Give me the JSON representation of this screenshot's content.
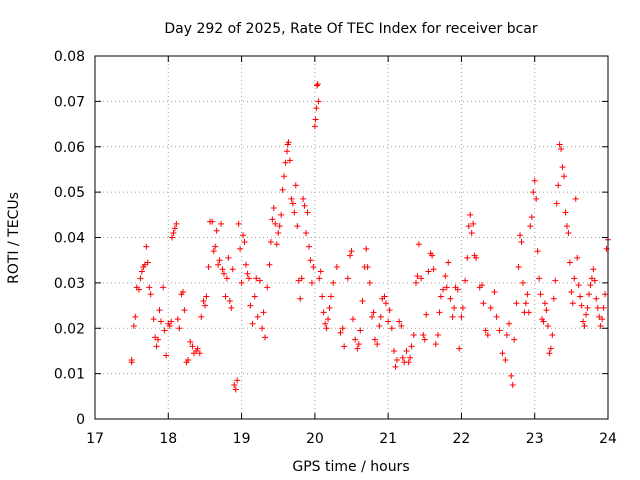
{
  "chart_data": {
    "type": "scatter",
    "title": "Day 292 of 2025, Rate Of TEC Index for receiver bcar",
    "xlabel": "GPS time / hours",
    "ylabel": "ROTI / TECUs",
    "xlim": [
      17,
      24
    ],
    "ylim": [
      0,
      0.08
    ],
    "x_ticks": [
      17,
      18,
      19,
      20,
      21,
      22,
      23,
      24
    ],
    "x_tick_labels": [
      "17",
      "18",
      "19",
      "20",
      "21",
      "22",
      "23",
      "24"
    ],
    "y_ticks": [
      0,
      0.01,
      0.02,
      0.03,
      0.04,
      0.05,
      0.06,
      0.07,
      0.08
    ],
    "y_tick_labels": [
      "0",
      "0.01",
      "0.02",
      "0.03",
      "0.04",
      "0.05",
      "0.06",
      "0.07",
      "0.08"
    ],
    "grid": true,
    "marker": "plus",
    "color": "#ff0000",
    "series": [
      {
        "name": "ROTI",
        "points": [
          [
            17.5,
            0.0125
          ],
          [
            17.5,
            0.013
          ],
          [
            17.53,
            0.0205
          ],
          [
            17.55,
            0.0225
          ],
          [
            17.57,
            0.029
          ],
          [
            17.6,
            0.0285
          ],
          [
            17.62,
            0.031
          ],
          [
            17.64,
            0.0325
          ],
          [
            17.66,
            0.0335
          ],
          [
            17.68,
            0.034
          ],
          [
            17.7,
            0.038
          ],
          [
            17.72,
            0.0345
          ],
          [
            17.74,
            0.029
          ],
          [
            17.76,
            0.0275
          ],
          [
            17.8,
            0.022
          ],
          [
            17.82,
            0.018
          ],
          [
            17.84,
            0.016
          ],
          [
            17.86,
            0.0175
          ],
          [
            17.88,
            0.024
          ],
          [
            17.9,
            0.0215
          ],
          [
            17.93,
            0.029
          ],
          [
            17.95,
            0.0195
          ],
          [
            17.97,
            0.014
          ],
          [
            18.0,
            0.021
          ],
          [
            18.02,
            0.0205
          ],
          [
            18.04,
            0.0215
          ],
          [
            18.05,
            0.04
          ],
          [
            18.07,
            0.041
          ],
          [
            18.09,
            0.042
          ],
          [
            18.11,
            0.043
          ],
          [
            18.13,
            0.022
          ],
          [
            18.15,
            0.02
          ],
          [
            18.18,
            0.0275
          ],
          [
            18.2,
            0.028
          ],
          [
            18.22,
            0.024
          ],
          [
            18.25,
            0.0125
          ],
          [
            18.27,
            0.013
          ],
          [
            18.3,
            0.017
          ],
          [
            18.33,
            0.016
          ],
          [
            18.35,
            0.0145
          ],
          [
            18.38,
            0.015
          ],
          [
            18.4,
            0.0155
          ],
          [
            18.43,
            0.0145
          ],
          [
            18.45,
            0.0225
          ],
          [
            18.48,
            0.026
          ],
          [
            18.5,
            0.025
          ],
          [
            18.52,
            0.027
          ],
          [
            18.55,
            0.0335
          ],
          [
            18.57,
            0.0435
          ],
          [
            18.6,
            0.0435
          ],
          [
            18.62,
            0.037
          ],
          [
            18.64,
            0.038
          ],
          [
            18.66,
            0.0415
          ],
          [
            18.68,
            0.034
          ],
          [
            18.7,
            0.035
          ],
          [
            18.72,
            0.043
          ],
          [
            18.74,
            0.033
          ],
          [
            18.76,
            0.032
          ],
          [
            18.78,
            0.027
          ],
          [
            18.8,
            0.031
          ],
          [
            18.82,
            0.0355
          ],
          [
            18.84,
            0.026
          ],
          [
            18.86,
            0.0245
          ],
          [
            18.88,
            0.033
          ],
          [
            18.9,
            0.0075
          ],
          [
            18.92,
            0.0065
          ],
          [
            18.94,
            0.0085
          ],
          [
            18.96,
            0.043
          ],
          [
            18.98,
            0.0375
          ],
          [
            19.0,
            0.03
          ],
          [
            19.02,
            0.0405
          ],
          [
            19.04,
            0.039
          ],
          [
            19.06,
            0.034
          ],
          [
            19.08,
            0.032
          ],
          [
            19.1,
            0.031
          ],
          [
            19.12,
            0.025
          ],
          [
            19.15,
            0.021
          ],
          [
            19.18,
            0.027
          ],
          [
            19.2,
            0.031
          ],
          [
            19.22,
            0.0225
          ],
          [
            19.25,
            0.0305
          ],
          [
            19.28,
            0.02
          ],
          [
            19.3,
            0.0235
          ],
          [
            19.32,
            0.018
          ],
          [
            19.35,
            0.029
          ],
          [
            19.38,
            0.034
          ],
          [
            19.4,
            0.039
          ],
          [
            19.42,
            0.044
          ],
          [
            19.44,
            0.0465
          ],
          [
            19.46,
            0.043
          ],
          [
            19.48,
            0.0385
          ],
          [
            19.5,
            0.041
          ],
          [
            19.52,
            0.0425
          ],
          [
            19.54,
            0.045
          ],
          [
            19.56,
            0.0505
          ],
          [
            19.58,
            0.0535
          ],
          [
            19.6,
            0.0565
          ],
          [
            19.62,
            0.059
          ],
          [
            19.63,
            0.0605
          ],
          [
            19.64,
            0.061
          ],
          [
            19.66,
            0.057
          ],
          [
            19.68,
            0.0485
          ],
          [
            19.7,
            0.0475
          ],
          [
            19.72,
            0.0455
          ],
          [
            19.74,
            0.0515
          ],
          [
            19.76,
            0.0425
          ],
          [
            19.78,
            0.0305
          ],
          [
            19.8,
            0.0265
          ],
          [
            19.82,
            0.031
          ],
          [
            19.84,
            0.0485
          ],
          [
            19.86,
            0.047
          ],
          [
            19.88,
            0.041
          ],
          [
            19.9,
            0.0455
          ],
          [
            19.92,
            0.038
          ],
          [
            19.94,
            0.035
          ],
          [
            19.96,
            0.03
          ],
          [
            19.98,
            0.0335
          ],
          [
            20.0,
            0.0645
          ],
          [
            20.01,
            0.066
          ],
          [
            20.02,
            0.0685
          ],
          [
            20.03,
            0.0735
          ],
          [
            20.04,
            0.0738
          ],
          [
            20.05,
            0.07
          ],
          [
            20.06,
            0.031
          ],
          [
            20.08,
            0.0325
          ],
          [
            20.1,
            0.027
          ],
          [
            20.12,
            0.0235
          ],
          [
            20.14,
            0.021
          ],
          [
            20.16,
            0.02
          ],
          [
            20.18,
            0.022
          ],
          [
            20.2,
            0.0245
          ],
          [
            20.22,
            0.027
          ],
          [
            20.25,
            0.03
          ],
          [
            20.3,
            0.0335
          ],
          [
            20.35,
            0.019
          ],
          [
            20.38,
            0.02
          ],
          [
            20.4,
            0.016
          ],
          [
            20.45,
            0.031
          ],
          [
            20.48,
            0.036
          ],
          [
            20.5,
            0.037
          ],
          [
            20.52,
            0.022
          ],
          [
            20.55,
            0.0175
          ],
          [
            20.58,
            0.0155
          ],
          [
            20.6,
            0.0165
          ],
          [
            20.62,
            0.0195
          ],
          [
            20.65,
            0.026
          ],
          [
            20.68,
            0.0335
          ],
          [
            20.7,
            0.0375
          ],
          [
            20.72,
            0.0335
          ],
          [
            20.75,
            0.03
          ],
          [
            20.78,
            0.0225
          ],
          [
            20.8,
            0.0235
          ],
          [
            20.82,
            0.0175
          ],
          [
            20.85,
            0.0165
          ],
          [
            20.88,
            0.0205
          ],
          [
            20.9,
            0.0225
          ],
          [
            20.92,
            0.0265
          ],
          [
            20.95,
            0.027
          ],
          [
            20.97,
            0.0255
          ],
          [
            21.0,
            0.0215
          ],
          [
            21.02,
            0.024
          ],
          [
            21.05,
            0.02
          ],
          [
            21.08,
            0.015
          ],
          [
            21.1,
            0.0115
          ],
          [
            21.12,
            0.013
          ],
          [
            21.15,
            0.0215
          ],
          [
            21.18,
            0.0205
          ],
          [
            21.2,
            0.0135
          ],
          [
            21.22,
            0.0125
          ],
          [
            21.25,
            0.015
          ],
          [
            21.28,
            0.0125
          ],
          [
            21.3,
            0.0135
          ],
          [
            21.32,
            0.016
          ],
          [
            21.35,
            0.0185
          ],
          [
            21.38,
            0.03
          ],
          [
            21.4,
            0.0315
          ],
          [
            21.42,
            0.0385
          ],
          [
            21.45,
            0.031
          ],
          [
            21.48,
            0.0185
          ],
          [
            21.5,
            0.0175
          ],
          [
            21.52,
            0.023
          ],
          [
            21.55,
            0.0325
          ],
          [
            21.58,
            0.0365
          ],
          [
            21.6,
            0.036
          ],
          [
            21.62,
            0.033
          ],
          [
            21.65,
            0.0165
          ],
          [
            21.68,
            0.0185
          ],
          [
            21.7,
            0.0235
          ],
          [
            21.72,
            0.027
          ],
          [
            21.75,
            0.0285
          ],
          [
            21.78,
            0.0315
          ],
          [
            21.8,
            0.029
          ],
          [
            21.82,
            0.0345
          ],
          [
            21.85,
            0.0265
          ],
          [
            21.88,
            0.0225
          ],
          [
            21.9,
            0.0245
          ],
          [
            21.92,
            0.029
          ],
          [
            21.95,
            0.0285
          ],
          [
            21.97,
            0.0155
          ],
          [
            22.0,
            0.0225
          ],
          [
            22.02,
            0.0245
          ],
          [
            22.05,
            0.0305
          ],
          [
            22.08,
            0.0355
          ],
          [
            22.1,
            0.0425
          ],
          [
            22.12,
            0.045
          ],
          [
            22.14,
            0.041
          ],
          [
            22.16,
            0.043
          ],
          [
            22.18,
            0.036
          ],
          [
            22.2,
            0.0355
          ],
          [
            22.25,
            0.029
          ],
          [
            22.28,
            0.0295
          ],
          [
            22.3,
            0.0255
          ],
          [
            22.33,
            0.0195
          ],
          [
            22.36,
            0.0185
          ],
          [
            22.4,
            0.0245
          ],
          [
            22.45,
            0.028
          ],
          [
            22.48,
            0.0225
          ],
          [
            22.52,
            0.0195
          ],
          [
            22.56,
            0.0145
          ],
          [
            22.6,
            0.013
          ],
          [
            22.62,
            0.0185
          ],
          [
            22.65,
            0.021
          ],
          [
            22.68,
            0.0095
          ],
          [
            22.7,
            0.0075
          ],
          [
            22.72,
            0.0175
          ],
          [
            22.75,
            0.0255
          ],
          [
            22.78,
            0.0335
          ],
          [
            22.8,
            0.0405
          ],
          [
            22.82,
            0.039
          ],
          [
            22.84,
            0.03
          ],
          [
            22.86,
            0.0235
          ],
          [
            22.88,
            0.0255
          ],
          [
            22.9,
            0.0275
          ],
          [
            22.92,
            0.0235
          ],
          [
            22.94,
            0.0425
          ],
          [
            22.96,
            0.0445
          ],
          [
            22.98,
            0.05
          ],
          [
            23.0,
            0.0525
          ],
          [
            23.02,
            0.0485
          ],
          [
            23.04,
            0.037
          ],
          [
            23.06,
            0.031
          ],
          [
            23.08,
            0.0275
          ],
          [
            23.1,
            0.022
          ],
          [
            23.12,
            0.0215
          ],
          [
            23.14,
            0.0255
          ],
          [
            23.16,
            0.024
          ],
          [
            23.18,
            0.0205
          ],
          [
            23.2,
            0.0145
          ],
          [
            23.22,
            0.0155
          ],
          [
            23.24,
            0.0185
          ],
          [
            23.26,
            0.0265
          ],
          [
            23.28,
            0.0305
          ],
          [
            23.3,
            0.0475
          ],
          [
            23.32,
            0.0515
          ],
          [
            23.34,
            0.0605
          ],
          [
            23.36,
            0.0595
          ],
          [
            23.38,
            0.0555
          ],
          [
            23.4,
            0.0535
          ],
          [
            23.42,
            0.0455
          ],
          [
            23.44,
            0.0425
          ],
          [
            23.46,
            0.041
          ],
          [
            23.48,
            0.0345
          ],
          [
            23.5,
            0.028
          ],
          [
            23.52,
            0.0255
          ],
          [
            23.54,
            0.031
          ],
          [
            23.56,
            0.0485
          ],
          [
            23.58,
            0.0355
          ],
          [
            23.6,
            0.0295
          ],
          [
            23.62,
            0.027
          ],
          [
            23.64,
            0.025
          ],
          [
            23.66,
            0.0215
          ],
          [
            23.68,
            0.0205
          ],
          [
            23.7,
            0.023
          ],
          [
            23.72,
            0.0245
          ],
          [
            23.74,
            0.0275
          ],
          [
            23.76,
            0.0295
          ],
          [
            23.78,
            0.031
          ],
          [
            23.8,
            0.033
          ],
          [
            23.82,
            0.0305
          ],
          [
            23.84,
            0.0265
          ],
          [
            23.86,
            0.0245
          ],
          [
            23.88,
            0.0225
          ],
          [
            23.9,
            0.0205
          ],
          [
            23.92,
            0.022
          ],
          [
            23.94,
            0.0245
          ],
          [
            23.96,
            0.0275
          ],
          [
            23.98,
            0.0375
          ],
          [
            24.0,
            0.0395
          ]
        ]
      }
    ]
  }
}
